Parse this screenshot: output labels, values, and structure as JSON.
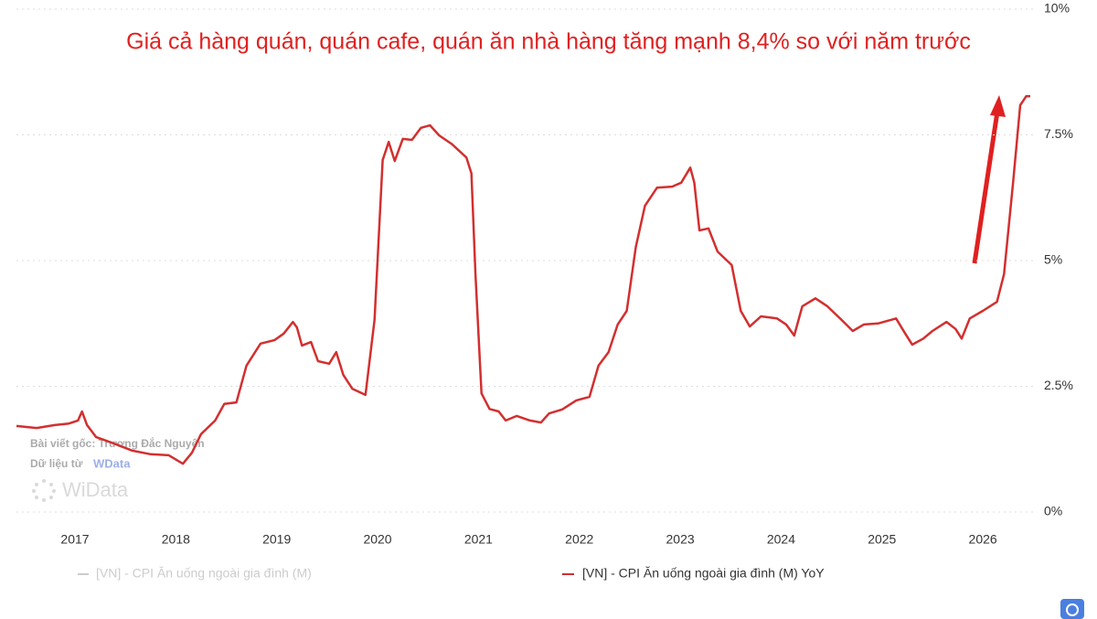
{
  "chart_data": {
    "type": "line",
    "title": "Giá cả hàng quán, quán cafe, quán ăn nhà hàng tăng mạnh 8,4% so với năm trước",
    "x": [
      2016.42,
      2016.62,
      2016.8,
      2016.94,
      2017.03,
      2017.07,
      2017.12,
      2017.21,
      2017.39,
      2017.57,
      2017.75,
      2017.93,
      2018.07,
      2018.16,
      2018.25,
      2018.39,
      2018.48,
      2018.6,
      2018.7,
      2018.84,
      2018.98,
      2019.07,
      2019.16,
      2019.2,
      2019.25,
      2019.34,
      2019.41,
      2019.52,
      2019.59,
      2019.66,
      2019.75,
      2019.88,
      2019.97,
      2020.05,
      2020.11,
      2020.17,
      2020.25,
      2020.34,
      2020.43,
      2020.52,
      2020.61,
      2020.74,
      2020.88,
      2020.93,
      2020.97,
      2021.03,
      2021.11,
      2021.2,
      2021.27,
      2021.38,
      2021.51,
      2021.62,
      2021.7,
      2021.83,
      2021.97,
      2022.1,
      2022.19,
      2022.29,
      2022.38,
      2022.47,
      2022.56,
      2022.65,
      2022.77,
      2022.92,
      2023.01,
      2023.1,
      2023.14,
      2023.19,
      2023.28,
      2023.37,
      2023.51,
      2023.6,
      2023.69,
      2023.8,
      2023.96,
      2024.05,
      2024.13,
      2024.21,
      2024.34,
      2024.46,
      2024.6,
      2024.71,
      2024.82,
      2024.96,
      2025.14,
      2025.23,
      2025.3,
      2025.41,
      2025.5,
      2025.64,
      2025.73,
      2025.79,
      2025.87,
      2026.0,
      2026.14,
      2026.21,
      2026.3,
      2026.37,
      2026.43,
      2026.47
    ],
    "series": [
      {
        "name": "[VN] - CPI Ăn uống ngoài gia đình (M) YoY",
        "color": "#d32f2f",
        "values": [
          1.71,
          1.67,
          1.73,
          1.76,
          1.82,
          2.0,
          1.73,
          1.49,
          1.36,
          1.22,
          1.15,
          1.13,
          0.96,
          1.18,
          1.55,
          1.82,
          2.15,
          2.18,
          2.91,
          3.35,
          3.42,
          3.55,
          3.78,
          3.67,
          3.31,
          3.38,
          3.0,
          2.95,
          3.18,
          2.73,
          2.45,
          2.33,
          3.82,
          7.0,
          7.36,
          6.98,
          7.42,
          7.4,
          7.64,
          7.69,
          7.49,
          7.31,
          7.05,
          6.73,
          4.73,
          2.36,
          2.05,
          2.0,
          1.82,
          1.91,
          1.82,
          1.78,
          1.96,
          2.04,
          2.22,
          2.29,
          2.91,
          3.18,
          3.73,
          4.0,
          5.27,
          6.09,
          6.45,
          6.47,
          6.55,
          6.85,
          6.55,
          5.6,
          5.64,
          5.18,
          4.91,
          4.0,
          3.69,
          3.89,
          3.85,
          3.73,
          3.51,
          4.09,
          4.25,
          4.09,
          3.82,
          3.6,
          3.73,
          3.75,
          3.85,
          3.55,
          3.33,
          3.45,
          3.6,
          3.78,
          3.64,
          3.45,
          3.85,
          4.0,
          4.18,
          4.73,
          6.55,
          8.09,
          8.27,
          8.27
        ]
      }
    ],
    "legend_inactive": "[VN] - CPI Ăn uống ngoài gia đình (M)",
    "legend_inactive_color": "#cccccc",
    "xlim": [
      2016.42,
      2026.47
    ],
    "xticks": [
      2017,
      2018,
      2019,
      2020,
      2021,
      2022,
      2023,
      2024,
      2025,
      2026
    ],
    "ylim": [
      0,
      10
    ],
    "yticks": [
      {
        "value": 0,
        "label": "0%"
      },
      {
        "value": 2.5,
        "label": "2.5%"
      },
      {
        "value": 5,
        "label": "5%"
      },
      {
        "value": 7.5,
        "label": "7.5%"
      },
      {
        "value": 10,
        "label": "10%"
      }
    ],
    "grid": true,
    "watermark": {
      "author": "Bài viết gốc: Trương Đắc Nguyên",
      "source": "Dữ liệu từ",
      "source_logo": "WData",
      "brand": "WiData"
    }
  }
}
